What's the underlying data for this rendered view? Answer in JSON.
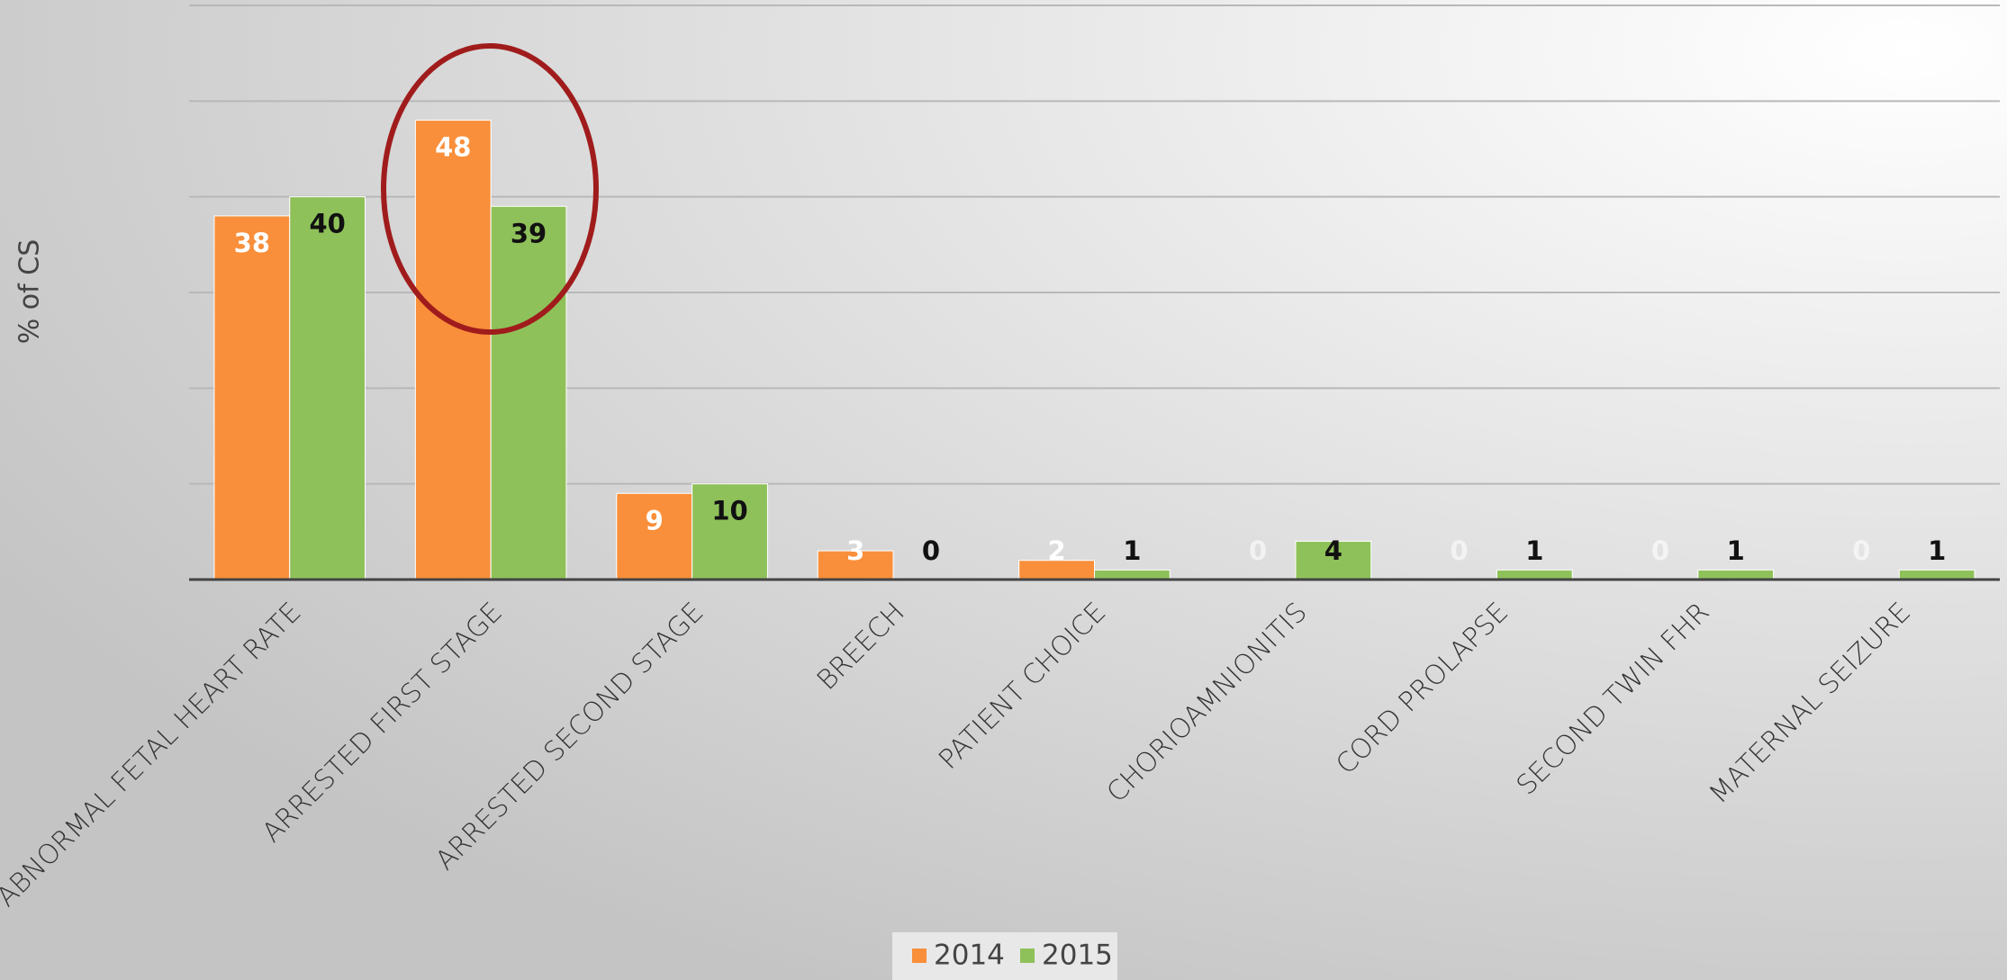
{
  "chart_data": {
    "type": "bar",
    "y_label": "% of CS",
    "categories": [
      "ABNORMAL FETAL HEART RATE",
      "ARRESTED FIRST STAGE",
      "ARRESTED SECOND STAGE",
      "BREECH",
      "PATIENT CHOICE",
      "CHORIOAMNIONITIS",
      "CORD PROLAPSE",
      "SECOND TWIN FHR",
      "MATERNAL SEIZURE"
    ],
    "series": [
      {
        "name": "2014",
        "color": "#f98f3a",
        "values": [
          38,
          48,
          9,
          3,
          2,
          0,
          0,
          0,
          0
        ]
      },
      {
        "name": "2015",
        "color": "#8fc15a",
        "values": [
          40,
          39,
          10,
          0,
          1,
          4,
          1,
          1,
          1
        ]
      }
    ],
    "ylim": [
      0,
      60
    ],
    "yticks": [
      0,
      10,
      20,
      30,
      40,
      50,
      60
    ],
    "grid": true,
    "legend": "bottom"
  }
}
